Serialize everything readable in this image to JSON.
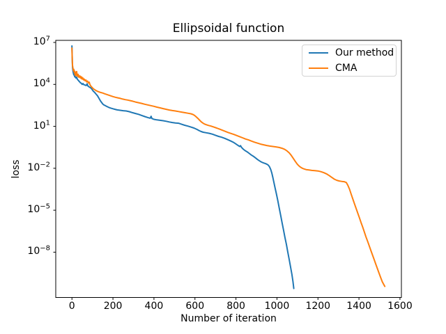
{
  "chart_data": {
    "type": "line",
    "title": "Ellipsoidal function",
    "xlabel": "Number of iteration",
    "ylabel": "loss",
    "x_scale": "linear",
    "y_scale": "log",
    "grid": false,
    "legend_position": "upper right",
    "x_ticks": [
      0,
      200,
      400,
      600,
      800,
      1000,
      1200,
      1400,
      1600
    ],
    "y_ticks_log10": [
      7,
      4,
      1,
      -2,
      -5,
      -8
    ],
    "xlim": [
      -79,
      1607
    ],
    "ylim_log10": [
      -11.24,
      7.15
    ],
    "y_values_are": "log10(loss)",
    "series": [
      {
        "name": "Our method",
        "color": "#1f77b4",
        "points": [
          [
            0,
            6.75
          ],
          [
            1,
            6.2
          ],
          [
            2,
            5.55
          ],
          [
            3,
            5.2
          ],
          [
            5,
            4.95
          ],
          [
            7,
            4.8
          ],
          [
            9,
            4.68
          ],
          [
            11,
            4.76
          ],
          [
            13,
            4.55
          ],
          [
            15,
            4.62
          ],
          [
            17,
            4.5
          ],
          [
            20,
            4.45
          ],
          [
            23,
            4.52
          ],
          [
            26,
            4.38
          ],
          [
            29,
            4.32
          ],
          [
            32,
            4.28
          ],
          [
            35,
            4.22
          ],
          [
            38,
            4.18
          ],
          [
            41,
            4.12
          ],
          [
            44,
            4.1
          ],
          [
            47,
            4.05
          ],
          [
            50,
            4.0
          ],
          [
            54,
            4.06
          ],
          [
            58,
            3.98
          ],
          [
            62,
            3.96
          ],
          [
            66,
            3.94
          ],
          [
            70,
            3.92
          ],
          [
            74,
            4.04
          ],
          [
            78,
            3.88
          ],
          [
            82,
            3.84
          ],
          [
            86,
            3.8
          ],
          [
            90,
            3.77
          ],
          [
            95,
            3.7
          ],
          [
            100,
            3.6
          ],
          [
            105,
            3.5
          ],
          [
            110,
            3.44
          ],
          [
            115,
            3.35
          ],
          [
            120,
            3.27
          ],
          [
            125,
            3.18
          ],
          [
            130,
            3.05
          ],
          [
            135,
            2.92
          ],
          [
            140,
            2.8
          ],
          [
            145,
            2.7
          ],
          [
            150,
            2.6
          ],
          [
            155,
            2.54
          ],
          [
            160,
            2.5
          ],
          [
            170,
            2.42
          ],
          [
            180,
            2.35
          ],
          [
            190,
            2.3
          ],
          [
            200,
            2.26
          ],
          [
            210,
            2.22
          ],
          [
            220,
            2.18
          ],
          [
            235,
            2.15
          ],
          [
            250,
            2.12
          ],
          [
            265,
            2.1
          ],
          [
            280,
            2.05
          ],
          [
            295,
            1.98
          ],
          [
            310,
            1.92
          ],
          [
            325,
            1.86
          ],
          [
            340,
            1.78
          ],
          [
            355,
            1.7
          ],
          [
            370,
            1.63
          ],
          [
            382,
            1.58
          ],
          [
            386,
            1.72
          ],
          [
            390,
            1.56
          ],
          [
            400,
            1.5
          ],
          [
            415,
            1.46
          ],
          [
            430,
            1.43
          ],
          [
            445,
            1.4
          ],
          [
            460,
            1.36
          ],
          [
            475,
            1.31
          ],
          [
            490,
            1.27
          ],
          [
            505,
            1.24
          ],
          [
            520,
            1.22
          ],
          [
            535,
            1.15
          ],
          [
            550,
            1.08
          ],
          [
            565,
            1.02
          ],
          [
            580,
            0.95
          ],
          [
            595,
            0.88
          ],
          [
            610,
            0.78
          ],
          [
            620,
            0.7
          ],
          [
            630,
            0.63
          ],
          [
            640,
            0.58
          ],
          [
            655,
            0.54
          ],
          [
            670,
            0.5
          ],
          [
            685,
            0.44
          ],
          [
            700,
            0.36
          ],
          [
            715,
            0.28
          ],
          [
            730,
            0.22
          ],
          [
            745,
            0.14
          ],
          [
            760,
            0.05
          ],
          [
            775,
            -0.05
          ],
          [
            790,
            -0.16
          ],
          [
            800,
            -0.26
          ],
          [
            810,
            -0.36
          ],
          [
            818,
            -0.44
          ],
          [
            822,
            -0.38
          ],
          [
            828,
            -0.52
          ],
          [
            836,
            -0.64
          ],
          [
            845,
            -0.74
          ],
          [
            855,
            -0.83
          ],
          [
            865,
            -0.94
          ],
          [
            875,
            -1.05
          ],
          [
            885,
            -1.14
          ],
          [
            895,
            -1.25
          ],
          [
            905,
            -1.37
          ],
          [
            915,
            -1.47
          ],
          [
            925,
            -1.56
          ],
          [
            935,
            -1.62
          ],
          [
            945,
            -1.67
          ],
          [
            952,
            -1.72
          ],
          [
            958,
            -1.78
          ],
          [
            964,
            -1.9
          ],
          [
            970,
            -2.1
          ],
          [
            975,
            -2.35
          ],
          [
            980,
            -2.65
          ],
          [
            985,
            -3.0
          ],
          [
            990,
            -3.35
          ],
          [
            997,
            -3.8
          ],
          [
            1004,
            -4.3
          ],
          [
            1011,
            -4.85
          ],
          [
            1018,
            -5.35
          ],
          [
            1025,
            -5.9
          ],
          [
            1032,
            -6.4
          ],
          [
            1039,
            -6.95
          ],
          [
            1046,
            -7.45
          ],
          [
            1053,
            -8.0
          ],
          [
            1060,
            -8.55
          ],
          [
            1067,
            -9.1
          ],
          [
            1073,
            -9.6
          ],
          [
            1078,
            -10.1
          ],
          [
            1082,
            -10.6
          ]
        ]
      },
      {
        "name": "CMA",
        "color": "#ff7f0e",
        "points": [
          [
            0,
            6.6
          ],
          [
            1,
            6.1
          ],
          [
            2,
            5.65
          ],
          [
            3,
            5.35
          ],
          [
            5,
            5.15
          ],
          [
            7,
            4.98
          ],
          [
            9,
            5.08
          ],
          [
            11,
            4.85
          ],
          [
            13,
            4.95
          ],
          [
            15,
            4.68
          ],
          [
            17,
            4.88
          ],
          [
            19,
            4.62
          ],
          [
            21,
            4.78
          ],
          [
            23,
            4.92
          ],
          [
            25,
            4.68
          ],
          [
            27,
            4.58
          ],
          [
            30,
            4.72
          ],
          [
            33,
            4.52
          ],
          [
            36,
            4.62
          ],
          [
            39,
            4.48
          ],
          [
            42,
            4.58
          ],
          [
            45,
            4.42
          ],
          [
            48,
            4.52
          ],
          [
            51,
            4.38
          ],
          [
            54,
            4.45
          ],
          [
            57,
            4.32
          ],
          [
            60,
            4.38
          ],
          [
            64,
            4.26
          ],
          [
            68,
            4.32
          ],
          [
            72,
            4.18
          ],
          [
            76,
            4.24
          ],
          [
            80,
            4.1
          ],
          [
            84,
            4.16
          ],
          [
            88,
            3.98
          ],
          [
            92,
            3.88
          ],
          [
            96,
            3.82
          ],
          [
            100,
            3.75
          ],
          [
            105,
            3.68
          ],
          [
            110,
            3.63
          ],
          [
            115,
            3.58
          ],
          [
            120,
            3.54
          ],
          [
            125,
            3.5
          ],
          [
            132,
            3.46
          ],
          [
            140,
            3.42
          ],
          [
            150,
            3.38
          ],
          [
            160,
            3.33
          ],
          [
            170,
            3.28
          ],
          [
            180,
            3.23
          ],
          [
            190,
            3.18
          ],
          [
            200,
            3.13
          ],
          [
            212,
            3.08
          ],
          [
            224,
            3.04
          ],
          [
            236,
            3.0
          ],
          [
            248,
            2.95
          ],
          [
            260,
            2.91
          ],
          [
            272,
            2.88
          ],
          [
            284,
            2.84
          ],
          [
            296,
            2.8
          ],
          [
            310,
            2.74
          ],
          [
            325,
            2.69
          ],
          [
            340,
            2.64
          ],
          [
            355,
            2.58
          ],
          [
            370,
            2.53
          ],
          [
            385,
            2.48
          ],
          [
            400,
            2.43
          ],
          [
            415,
            2.37
          ],
          [
            430,
            2.32
          ],
          [
            445,
            2.27
          ],
          [
            460,
            2.22
          ],
          [
            475,
            2.17
          ],
          [
            490,
            2.13
          ],
          [
            505,
            2.1
          ],
          [
            520,
            2.06
          ],
          [
            535,
            2.02
          ],
          [
            550,
            1.98
          ],
          [
            565,
            1.94
          ],
          [
            580,
            1.9
          ],
          [
            590,
            1.85
          ],
          [
            598,
            1.78
          ],
          [
            606,
            1.68
          ],
          [
            614,
            1.57
          ],
          [
            622,
            1.45
          ],
          [
            630,
            1.33
          ],
          [
            638,
            1.24
          ],
          [
            646,
            1.17
          ],
          [
            655,
            1.12
          ],
          [
            665,
            1.07
          ],
          [
            678,
            1.02
          ],
          [
            692,
            0.95
          ],
          [
            706,
            0.88
          ],
          [
            720,
            0.8
          ],
          [
            734,
            0.72
          ],
          [
            748,
            0.64
          ],
          [
            762,
            0.56
          ],
          [
            776,
            0.49
          ],
          [
            790,
            0.42
          ],
          [
            804,
            0.34
          ],
          [
            818,
            0.26
          ],
          [
            832,
            0.18
          ],
          [
            846,
            0.1
          ],
          [
            860,
            0.04
          ],
          [
            875,
            -0.05
          ],
          [
            890,
            -0.13
          ],
          [
            905,
            -0.2
          ],
          [
            920,
            -0.27
          ],
          [
            935,
            -0.32
          ],
          [
            950,
            -0.37
          ],
          [
            965,
            -0.41
          ],
          [
            980,
            -0.44
          ],
          [
            995,
            -0.47
          ],
          [
            1010,
            -0.51
          ],
          [
            1025,
            -0.57
          ],
          [
            1038,
            -0.65
          ],
          [
            1050,
            -0.77
          ],
          [
            1060,
            -0.9
          ],
          [
            1070,
            -1.08
          ],
          [
            1080,
            -1.3
          ],
          [
            1090,
            -1.52
          ],
          [
            1100,
            -1.72
          ],
          [
            1110,
            -1.87
          ],
          [
            1120,
            -1.97
          ],
          [
            1130,
            -2.04
          ],
          [
            1142,
            -2.09
          ],
          [
            1156,
            -2.12
          ],
          [
            1170,
            -2.15
          ],
          [
            1185,
            -2.17
          ],
          [
            1200,
            -2.19
          ],
          [
            1214,
            -2.24
          ],
          [
            1228,
            -2.31
          ],
          [
            1242,
            -2.4
          ],
          [
            1255,
            -2.52
          ],
          [
            1268,
            -2.66
          ],
          [
            1280,
            -2.78
          ],
          [
            1292,
            -2.86
          ],
          [
            1304,
            -2.91
          ],
          [
            1316,
            -2.94
          ],
          [
            1328,
            -2.96
          ],
          [
            1338,
            -3.02
          ],
          [
            1346,
            -3.22
          ],
          [
            1354,
            -3.5
          ],
          [
            1362,
            -3.85
          ],
          [
            1370,
            -4.2
          ],
          [
            1378,
            -4.53
          ],
          [
            1386,
            -4.87
          ],
          [
            1394,
            -5.2
          ],
          [
            1402,
            -5.53
          ],
          [
            1410,
            -5.87
          ],
          [
            1418,
            -6.2
          ],
          [
            1426,
            -6.55
          ],
          [
            1434,
            -6.9
          ],
          [
            1442,
            -7.22
          ],
          [
            1450,
            -7.54
          ],
          [
            1458,
            -7.88
          ],
          [
            1466,
            -8.2
          ],
          [
            1474,
            -8.53
          ],
          [
            1482,
            -8.85
          ],
          [
            1490,
            -9.18
          ],
          [
            1498,
            -9.5
          ],
          [
            1506,
            -9.82
          ],
          [
            1514,
            -10.12
          ],
          [
            1526,
            -10.45
          ]
        ]
      }
    ]
  }
}
